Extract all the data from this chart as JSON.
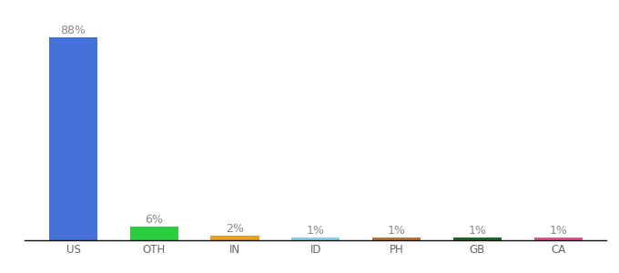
{
  "categories": [
    "US",
    "OTH",
    "IN",
    "ID",
    "PH",
    "GB",
    "CA"
  ],
  "values": [
    88,
    6,
    2,
    1,
    1,
    1,
    1
  ],
  "labels": [
    "88%",
    "6%",
    "2%",
    "1%",
    "1%",
    "1%",
    "1%"
  ],
  "bar_colors": [
    "#4472d9",
    "#2ecc40",
    "#e8a020",
    "#87ceeb",
    "#c07030",
    "#1a6620",
    "#e0508a"
  ],
  "background_color": "#ffffff",
  "ylim": [
    0,
    96
  ],
  "label_fontsize": 9,
  "tick_fontsize": 8.5,
  "label_color": "#888888",
  "tick_color": "#666666"
}
